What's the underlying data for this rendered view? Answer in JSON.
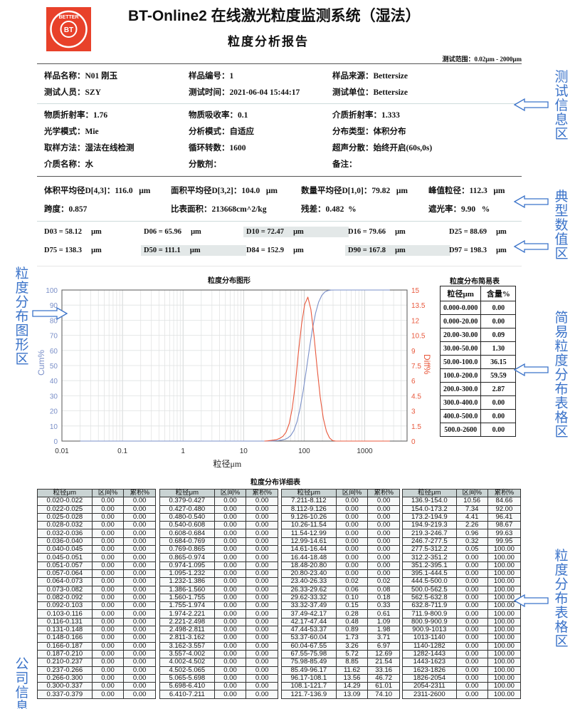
{
  "header": {
    "logo_text": "BETTER BT 百特",
    "title": "BT-Online2 在线激光粒度监测系统（湿法）",
    "subtitle": "粒度分析报告",
    "test_range": "测试范围：0.02μm - 2000μm"
  },
  "test_info": [
    [
      "样品名称：N01 刚玉",
      "样品编号：1",
      "样品来源：Bettersize"
    ],
    [
      "测试人员：SZY",
      "测试时间：2021-06-04  15:44:17",
      "测试单位：Bettersize"
    ],
    [
      "物质折射率：1.76",
      "物质吸收率：0.1",
      "介质折射率：1.333"
    ],
    [
      "光学模式：Mie",
      "分析模式：自适应",
      "分布类型：体积分布"
    ],
    [
      "取样方法：湿法在线检测",
      "循环转数：1600",
      "超声分散：始终开启(60s,0s)"
    ],
    [
      "介质名称：水",
      "分散剂：",
      "备注："
    ]
  ],
  "typical_values": {
    "row1": [
      "体积平均径D[4,3]：116.0   μm",
      "面积平均径D[3,2]：104.0   μm",
      "数量平均径D[1,0]：79.82   μm",
      "峰值粒径：112.3   μm"
    ],
    "row2": [
      "跨度：0.857",
      "比表面积：213668cm^2/kg",
      "残差：0.482  %",
      "遮光率：9.90   %"
    ],
    "d_row1": [
      "D03 = 58.12     μm",
      "D06 = 65.96     μm",
      "D10 = 72.47     μm",
      "D16 = 79.66     μm",
      "D25 = 88.69     μm"
    ],
    "d_row2": [
      "D75 = 138.3     μm",
      "D50 = 111.1     μm",
      "D84 = 152.9     μm",
      "D90 = 167.8     μm",
      "D97 = 198.3     μm"
    ],
    "highlighted": [
      "D10",
      "D50",
      "D90"
    ]
  },
  "chart_data": {
    "type": "line",
    "title": "粒度分布图形",
    "xlabel": "粒径μm",
    "ylabel_left": "Cum%",
    "ylabel_right": "Diff%",
    "x_scale": "log",
    "xlim": [
      0.01,
      5000
    ],
    "ylim_left": [
      0,
      100
    ],
    "ylim_right": [
      0,
      15
    ],
    "x_ticks": [
      "0.01",
      "0.1",
      "1",
      "10",
      "100",
      "1000"
    ],
    "y_ticks_left": [
      "0",
      "10",
      "20",
      "30",
      "40",
      "50",
      "60",
      "70",
      "80",
      "90",
      "100"
    ],
    "y_ticks_right": [
      "0",
      "1.5",
      "3",
      "4.5",
      "6",
      "7.5",
      "9",
      "10.5",
      "12",
      "13.5",
      "15"
    ],
    "grid": true,
    "colors": {
      "cum": "#7a8fc8",
      "diff": "#e8583c",
      "left_axis": "#7a8fc8",
      "right_axis": "#e8583c"
    },
    "series": [
      {
        "name": "Cum%",
        "axis": "left",
        "x": [
          0.02,
          23.4,
          26.33,
          29.62,
          33.32,
          37.49,
          42.17,
          47.44,
          53.37,
          60.04,
          67.55,
          75.98,
          85.49,
          96.17,
          108.1,
          121.7,
          136.9,
          154.0,
          173.2,
          194.9,
          219.3,
          246.7,
          277.5,
          312.2,
          2600
        ],
        "y": [
          0,
          0,
          0.02,
          0.08,
          0.18,
          0.33,
          0.61,
          1.09,
          1.98,
          3.71,
          6.97,
          12.69,
          21.54,
          33.16,
          46.72,
          61.01,
          74.1,
          84.66,
          92.0,
          96.41,
          98.67,
          99.63,
          99.95,
          100,
          100
        ]
      },
      {
        "name": "Diff%",
        "axis": "right",
        "x": [
          22,
          24.8,
          27.9,
          31.4,
          35.3,
          39.8,
          44.7,
          50.3,
          56.6,
          63.7,
          71.6,
          80.6,
          90.7,
          102,
          115,
          129,
          145,
          163,
          184,
          207,
          233,
          262,
          294,
          331,
          2600
        ],
        "y": [
          0,
          0.02,
          0.06,
          0.1,
          0.15,
          0.28,
          0.48,
          0.89,
          1.73,
          3.26,
          5.72,
          8.85,
          11.62,
          13.56,
          14.29,
          13.09,
          10.56,
          7.34,
          4.41,
          2.26,
          0.96,
          0.32,
          0.05,
          0,
          0
        ]
      }
    ]
  },
  "simple_table": {
    "title": "粒度分布简易表",
    "headers": [
      "粒径μm",
      "含量%"
    ],
    "rows": [
      [
        "0.000-0.000",
        "0.00"
      ],
      [
        "0.000-20.00",
        "0.00"
      ],
      [
        "20.00-30.00",
        "0.09"
      ],
      [
        "30.00-50.00",
        "1.30"
      ],
      [
        "50.00-100.0",
        "36.15"
      ],
      [
        "100.0-200.0",
        "59.59"
      ],
      [
        "200.0-300.0",
        "2.87"
      ],
      [
        "300.0-400.0",
        "0.00"
      ],
      [
        "400.0-500.0",
        "0.00"
      ],
      [
        "500.0-2600",
        "0.00"
      ]
    ]
  },
  "detail_table": {
    "title": "粒度分布详细表",
    "headers": [
      "粒径μm",
      "区间%",
      "累积%"
    ],
    "groups": [
      [
        [
          "0.020-0.022",
          "0.00",
          "0.00"
        ],
        [
          "0.022-0.025",
          "0.00",
          "0.00"
        ],
        [
          "0.025-0.028",
          "0.00",
          "0.00"
        ],
        [
          "0.028-0.032",
          "0.00",
          "0.00"
        ],
        [
          "0.032-0.036",
          "0.00",
          "0.00"
        ],
        [
          "0.036-0.040",
          "0.00",
          "0.00"
        ],
        [
          "0.040-0.045",
          "0.00",
          "0.00"
        ],
        [
          "0.045-0.051",
          "0.00",
          "0.00"
        ],
        [
          "0.051-0.057",
          "0.00",
          "0.00"
        ],
        [
          "0.057-0.064",
          "0.00",
          "0.00"
        ],
        [
          "0.064-0.073",
          "0.00",
          "0.00"
        ],
        [
          "0.073-0.082",
          "0.00",
          "0.00"
        ],
        [
          "0.082-0.092",
          "0.00",
          "0.00"
        ],
        [
          "0.092-0.103",
          "0.00",
          "0.00"
        ],
        [
          "0.103-0.116",
          "0.00",
          "0.00"
        ],
        [
          "0.116-0.131",
          "0.00",
          "0.00"
        ],
        [
          "0.131-0.148",
          "0.00",
          "0.00"
        ],
        [
          "0.148-0.166",
          "0.00",
          "0.00"
        ],
        [
          "0.166-0.187",
          "0.00",
          "0.00"
        ],
        [
          "0.187-0.210",
          "0.00",
          "0.00"
        ],
        [
          "0.210-0.237",
          "0.00",
          "0.00"
        ],
        [
          "0.237-0.266",
          "0.00",
          "0.00"
        ],
        [
          "0.266-0.300",
          "0.00",
          "0.00"
        ],
        [
          "0.300-0.337",
          "0.00",
          "0.00"
        ],
        [
          "0.337-0.379",
          "0.00",
          "0.00"
        ]
      ],
      [
        [
          "0.379-0.427",
          "0.00",
          "0.00"
        ],
        [
          "0.427-0.480",
          "0.00",
          "0.00"
        ],
        [
          "0.480-0.540",
          "0.00",
          "0.00"
        ],
        [
          "0.540-0.608",
          "0.00",
          "0.00"
        ],
        [
          "0.608-0.684",
          "0.00",
          "0.00"
        ],
        [
          "0.684-0.769",
          "0.00",
          "0.00"
        ],
        [
          "0.769-0.865",
          "0.00",
          "0.00"
        ],
        [
          "0.865-0.974",
          "0.00",
          "0.00"
        ],
        [
          "0.974-1.095",
          "0.00",
          "0.00"
        ],
        [
          "1.095-1.232",
          "0.00",
          "0.00"
        ],
        [
          "1.232-1.386",
          "0.00",
          "0.00"
        ],
        [
          "1.386-1.560",
          "0.00",
          "0.00"
        ],
        [
          "1.560-1.755",
          "0.00",
          "0.00"
        ],
        [
          "1.755-1.974",
          "0.00",
          "0.00"
        ],
        [
          "1.974-2.221",
          "0.00",
          "0.00"
        ],
        [
          "2.221-2.498",
          "0.00",
          "0.00"
        ],
        [
          "2.498-2.811",
          "0.00",
          "0.00"
        ],
        [
          "2.811-3.162",
          "0.00",
          "0.00"
        ],
        [
          "3.162-3.557",
          "0.00",
          "0.00"
        ],
        [
          "3.557-4.002",
          "0.00",
          "0.00"
        ],
        [
          "4.002-4.502",
          "0.00",
          "0.00"
        ],
        [
          "4.502-5.065",
          "0.00",
          "0.00"
        ],
        [
          "5.065-5.698",
          "0.00",
          "0.00"
        ],
        [
          "5.698-6.410",
          "0.00",
          "0.00"
        ],
        [
          "6.410-7.211",
          "0.00",
          "0.00"
        ]
      ],
      [
        [
          "7.211-8.112",
          "0.00",
          "0.00"
        ],
        [
          "8.112-9.126",
          "0.00",
          "0.00"
        ],
        [
          "9.126-10.26",
          "0.00",
          "0.00"
        ],
        [
          "10.26-11.54",
          "0.00",
          "0.00"
        ],
        [
          "11.54-12.99",
          "0.00",
          "0.00"
        ],
        [
          "12.99-14.61",
          "0.00",
          "0.00"
        ],
        [
          "14.61-16.44",
          "0.00",
          "0.00"
        ],
        [
          "16.44-18.48",
          "0.00",
          "0.00"
        ],
        [
          "18.48-20.80",
          "0.00",
          "0.00"
        ],
        [
          "20.80-23.40",
          "0.00",
          "0.00"
        ],
        [
          "23.40-26.33",
          "0.02",
          "0.02"
        ],
        [
          "26.33-29.62",
          "0.06",
          "0.08"
        ],
        [
          "29.62-33.32",
          "0.10",
          "0.18"
        ],
        [
          "33.32-37.49",
          "0.15",
          "0.33"
        ],
        [
          "37.49-42.17",
          "0.28",
          "0.61"
        ],
        [
          "42.17-47.44",
          "0.48",
          "1.09"
        ],
        [
          "47.44-53.37",
          "0.89",
          "1.98"
        ],
        [
          "53.37-60.04",
          "1.73",
          "3.71"
        ],
        [
          "60.04-67.55",
          "3.26",
          "6.97"
        ],
        [
          "67.55-75.98",
          "5.72",
          "12.69"
        ],
        [
          "75.98-85.49",
          "8.85",
          "21.54"
        ],
        [
          "85.49-96.17",
          "11.62",
          "33.16"
        ],
        [
          "96.17-108.1",
          "13.56",
          "46.72"
        ],
        [
          "108.1-121.7",
          "14.29",
          "61.01"
        ],
        [
          "121.7-136.9",
          "13.09",
          "74.10"
        ]
      ],
      [
        [
          "136.9-154.0",
          "10.56",
          "84.66"
        ],
        [
          "154.0-173.2",
          "7.34",
          "92.00"
        ],
        [
          "173.2-194.9",
          "4.41",
          "96.41"
        ],
        [
          "194.9-219.3",
          "2.26",
          "98.67"
        ],
        [
          "219.3-246.7",
          "0.96",
          "99.63"
        ],
        [
          "246.7-277.5",
          "0.32",
          "99.95"
        ],
        [
          "277.5-312.2",
          "0.05",
          "100.00"
        ],
        [
          "312.2-351.2",
          "0.00",
          "100.00"
        ],
        [
          "351.2-395.1",
          "0.00",
          "100.00"
        ],
        [
          "395.1-444.5",
          "0.00",
          "100.00"
        ],
        [
          "444.5-500.0",
          "0.00",
          "100.00"
        ],
        [
          "500.0-562.5",
          "0.00",
          "100.00"
        ],
        [
          "562.5-632.8",
          "0.00",
          "100.00"
        ],
        [
          "632.8-711.9",
          "0.00",
          "100.00"
        ],
        [
          "711.9-800.9",
          "0.00",
          "100.00"
        ],
        [
          "800.9-900.9",
          "0.00",
          "100.00"
        ],
        [
          "900.9-1013",
          "0.00",
          "100.00"
        ],
        [
          "1013-1140",
          "0.00",
          "100.00"
        ],
        [
          "1140-1282",
          "0.00",
          "100.00"
        ],
        [
          "1282-1443",
          "0.00",
          "100.00"
        ],
        [
          "1443-1623",
          "0.00",
          "100.00"
        ],
        [
          "1623-1826",
          "0.00",
          "100.00"
        ],
        [
          "1826-2054",
          "0.00",
          "100.00"
        ],
        [
          "2054-2311",
          "0.00",
          "100.00"
        ],
        [
          "2311-2600",
          "0.00",
          "100.00"
        ]
      ]
    ]
  },
  "annotations": {
    "test_info_area": "测试信息区",
    "typical_values_area": "典型数值区",
    "simple_table_area": "简易粒度分布表格区",
    "chart_area": "粒度分布图形区",
    "detail_table_area": "粒度分布表格区",
    "company_info_area": "公司信息区",
    "color": "#3b73c9"
  }
}
